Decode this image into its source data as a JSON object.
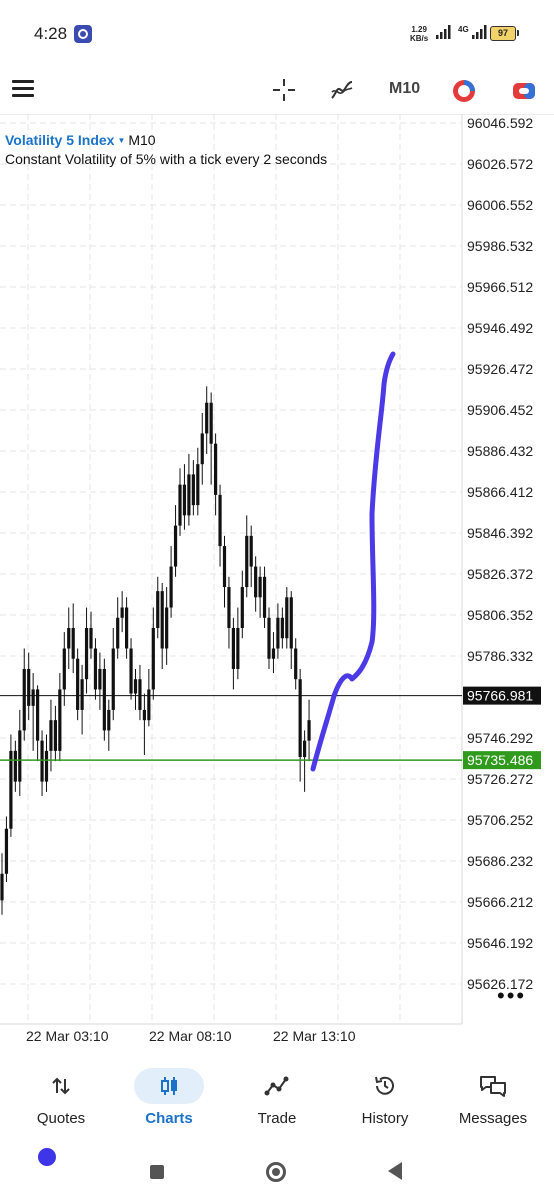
{
  "status_bar": {
    "time": "4:28",
    "net_speed_value": "1.29",
    "net_speed_unit": "KB/s",
    "network": "4G",
    "battery": "97"
  },
  "toolbar": {
    "timeframe": "M10",
    "icons": [
      "menu-icon",
      "crosshair-icon",
      "indicator-icon",
      "trade-app-icon",
      "objects-icon"
    ]
  },
  "chart": {
    "symbol": "Volatility 5 Index",
    "timeframe": "M10",
    "description": "Constant Volatility of 5% with a tick every 2 seconds",
    "y_axis_labels": [
      "96046.592",
      "96026.572",
      "96006.552",
      "95986.532",
      "95966.512",
      "95946.492",
      "95926.472",
      "95906.452",
      "95886.432",
      "95866.412",
      "95846.392",
      "95826.372",
      "95806.352",
      "95786.332",
      "95746.292",
      "95726.272",
      "95706.252",
      "95686.232",
      "95666.212",
      "95646.192",
      "95626.172"
    ],
    "x_axis_labels": [
      "22 Mar 03:10",
      "22 Mar 08:10",
      "22 Mar 13:10"
    ],
    "price_line_black": "95766.981",
    "price_line_green": "95735.486",
    "colors": {
      "accent": "#1a73c9",
      "green_line": "#2f9a1c",
      "hand_drawn": "#4b3ae6"
    }
  },
  "chart_data": {
    "type": "candlestick",
    "ylim": [
      95610,
      96052
    ],
    "horizontal_lines": [
      95766.981,
      95735.486
    ],
    "candles": [
      [
        95667,
        95680,
        95660,
        95690
      ],
      [
        95680,
        95702,
        95676,
        95708
      ],
      [
        95702,
        95740,
        95698,
        95748
      ],
      [
        95740,
        95725,
        95720,
        95745
      ],
      [
        95725,
        95750,
        95718,
        95760
      ],
      [
        95750,
        95780,
        95745,
        95790
      ],
      [
        95780,
        95762,
        95755,
        95788
      ],
      [
        95762,
        95770,
        95740,
        95778
      ],
      [
        95770,
        95745,
        95735,
        95772
      ],
      [
        95745,
        95725,
        95718,
        95750
      ],
      [
        95725,
        95740,
        95720,
        95748
      ],
      [
        95740,
        95755,
        95730,
        95765
      ],
      [
        95755,
        95740,
        95735,
        95762
      ],
      [
        95740,
        95770,
        95735,
        95778
      ],
      [
        95770,
        95790,
        95762,
        95798
      ],
      [
        95790,
        95800,
        95780,
        95810
      ],
      [
        95800,
        95785,
        95778,
        95812
      ],
      [
        95785,
        95760,
        95755,
        95790
      ],
      [
        95760,
        95775,
        95748,
        95782
      ],
      [
        95775,
        95800,
        95768,
        95810
      ],
      [
        95800,
        95790,
        95785,
        95808
      ],
      [
        95790,
        95770,
        95765,
        95795
      ],
      [
        95770,
        95780,
        95760,
        95788
      ],
      [
        95780,
        95750,
        95745,
        95785
      ],
      [
        95750,
        95760,
        95740,
        95765
      ],
      [
        95760,
        95790,
        95755,
        95800
      ],
      [
        95790,
        95805,
        95785,
        95815
      ],
      [
        95805,
        95810,
        95798,
        95818
      ],
      [
        95810,
        95790,
        95785,
        95815
      ],
      [
        95790,
        95768,
        95765,
        95795
      ],
      [
        95768,
        95775,
        95760,
        95780
      ],
      [
        95775,
        95760,
        95755,
        95782
      ],
      [
        95760,
        95755,
        95738,
        95768
      ],
      [
        95755,
        95770,
        95752,
        95780
      ],
      [
        95770,
        95800,
        95765,
        95810
      ],
      [
        95800,
        95818,
        95795,
        95825
      ],
      [
        95818,
        95790,
        95780,
        95822
      ],
      [
        95790,
        95810,
        95782,
        95820
      ],
      [
        95810,
        95830,
        95805,
        95840
      ],
      [
        95830,
        95850,
        95825,
        95860
      ],
      [
        95850,
        95870,
        95845,
        95878
      ],
      [
        95870,
        95855,
        95848,
        95880
      ],
      [
        95855,
        95875,
        95850,
        95885
      ],
      [
        95875,
        95860,
        95855,
        95882
      ],
      [
        95860,
        95880,
        95855,
        95888
      ],
      [
        95880,
        95895,
        95870,
        95905
      ],
      [
        95895,
        95910,
        95885,
        95918
      ],
      [
        95910,
        95890,
        95870,
        95915
      ],
      [
        95890,
        95865,
        95855,
        95895
      ],
      [
        95865,
        95840,
        95830,
        95870
      ],
      [
        95840,
        95820,
        95810,
        95845
      ],
      [
        95820,
        95800,
        95790,
        95825
      ],
      [
        95800,
        95780,
        95770,
        95805
      ],
      [
        95780,
        95800,
        95775,
        95810
      ],
      [
        95800,
        95820,
        95795,
        95828
      ],
      [
        95820,
        95845,
        95815,
        95855
      ],
      [
        95845,
        95830,
        95820,
        95850
      ],
      [
        95830,
        95815,
        95808,
        95835
      ],
      [
        95815,
        95825,
        95805,
        95830
      ],
      [
        95825,
        95805,
        95800,
        95830
      ],
      [
        95805,
        95785,
        95780,
        95810
      ],
      [
        95785,
        95790,
        95778,
        95798
      ],
      [
        95790,
        95805,
        95785,
        95812
      ],
      [
        95805,
        95795,
        95790,
        95810
      ],
      [
        95795,
        95815,
        95790,
        95820
      ],
      [
        95815,
        95790,
        95780,
        95818
      ],
      [
        95790,
        95775,
        95770,
        95795
      ],
      [
        95775,
        95737,
        95725,
        95780
      ],
      [
        95737,
        95745,
        95720,
        95750
      ],
      [
        95745,
        95755,
        95735,
        95765
      ]
    ]
  },
  "bottom_nav": {
    "items": [
      {
        "label": "Quotes",
        "icon": "sort-arrows-icon"
      },
      {
        "label": "Charts",
        "icon": "candlestick-icon"
      },
      {
        "label": "Trade",
        "icon": "trend-line-icon"
      },
      {
        "label": "History",
        "icon": "history-icon"
      },
      {
        "label": "Messages",
        "icon": "chat-bubbles-icon"
      }
    ],
    "active": "Charts"
  }
}
